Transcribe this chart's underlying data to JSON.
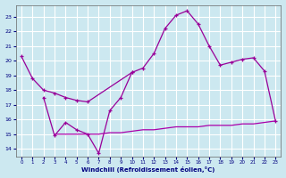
{
  "xlabel": "Windchill (Refroidissement éolien,°C)",
  "background_color": "#cce8f0",
  "grid_color": "#ffffff",
  "line_color": "#990099",
  "line_color2": "#aa00aa",
  "ylim": [
    13.5,
    23.8
  ],
  "xlim": [
    -0.5,
    23.5
  ],
  "yticks": [
    14,
    15,
    16,
    17,
    18,
    19,
    20,
    21,
    22,
    23
  ],
  "xticks": [
    0,
    1,
    2,
    3,
    4,
    5,
    6,
    7,
    8,
    9,
    10,
    11,
    12,
    13,
    14,
    15,
    16,
    17,
    18,
    19,
    20,
    21,
    22,
    23
  ],
  "line_a_x": [
    0,
    1,
    2,
    3,
    4,
    5,
    6,
    10,
    11,
    12,
    13,
    14,
    15,
    16,
    17,
    18,
    19,
    20,
    21,
    22,
    23
  ],
  "line_a_y": [
    20.3,
    18.8,
    18.0,
    17.8,
    17.5,
    17.3,
    17.2,
    19.2,
    19.5,
    20.5,
    22.2,
    23.1,
    23.4,
    22.5,
    21.0,
    19.7,
    19.9,
    20.1,
    20.2,
    19.3,
    15.9
  ],
  "line_b_x": [
    2,
    3,
    4,
    5,
    6,
    7,
    8,
    9,
    10
  ],
  "line_b_y": [
    17.5,
    14.9,
    15.8,
    15.3,
    15.0,
    13.7,
    16.6,
    17.5,
    19.2
  ],
  "line_c_x": [
    3,
    4,
    5,
    6,
    7,
    8,
    9,
    10,
    11,
    12,
    13,
    14,
    15,
    16,
    17,
    18,
    19,
    20,
    21,
    22,
    23
  ],
  "line_c_y": [
    15.0,
    15.0,
    15.0,
    15.0,
    15.0,
    15.1,
    15.1,
    15.2,
    15.3,
    15.3,
    15.4,
    15.5,
    15.5,
    15.5,
    15.6,
    15.6,
    15.6,
    15.7,
    15.7,
    15.8,
    15.9
  ]
}
